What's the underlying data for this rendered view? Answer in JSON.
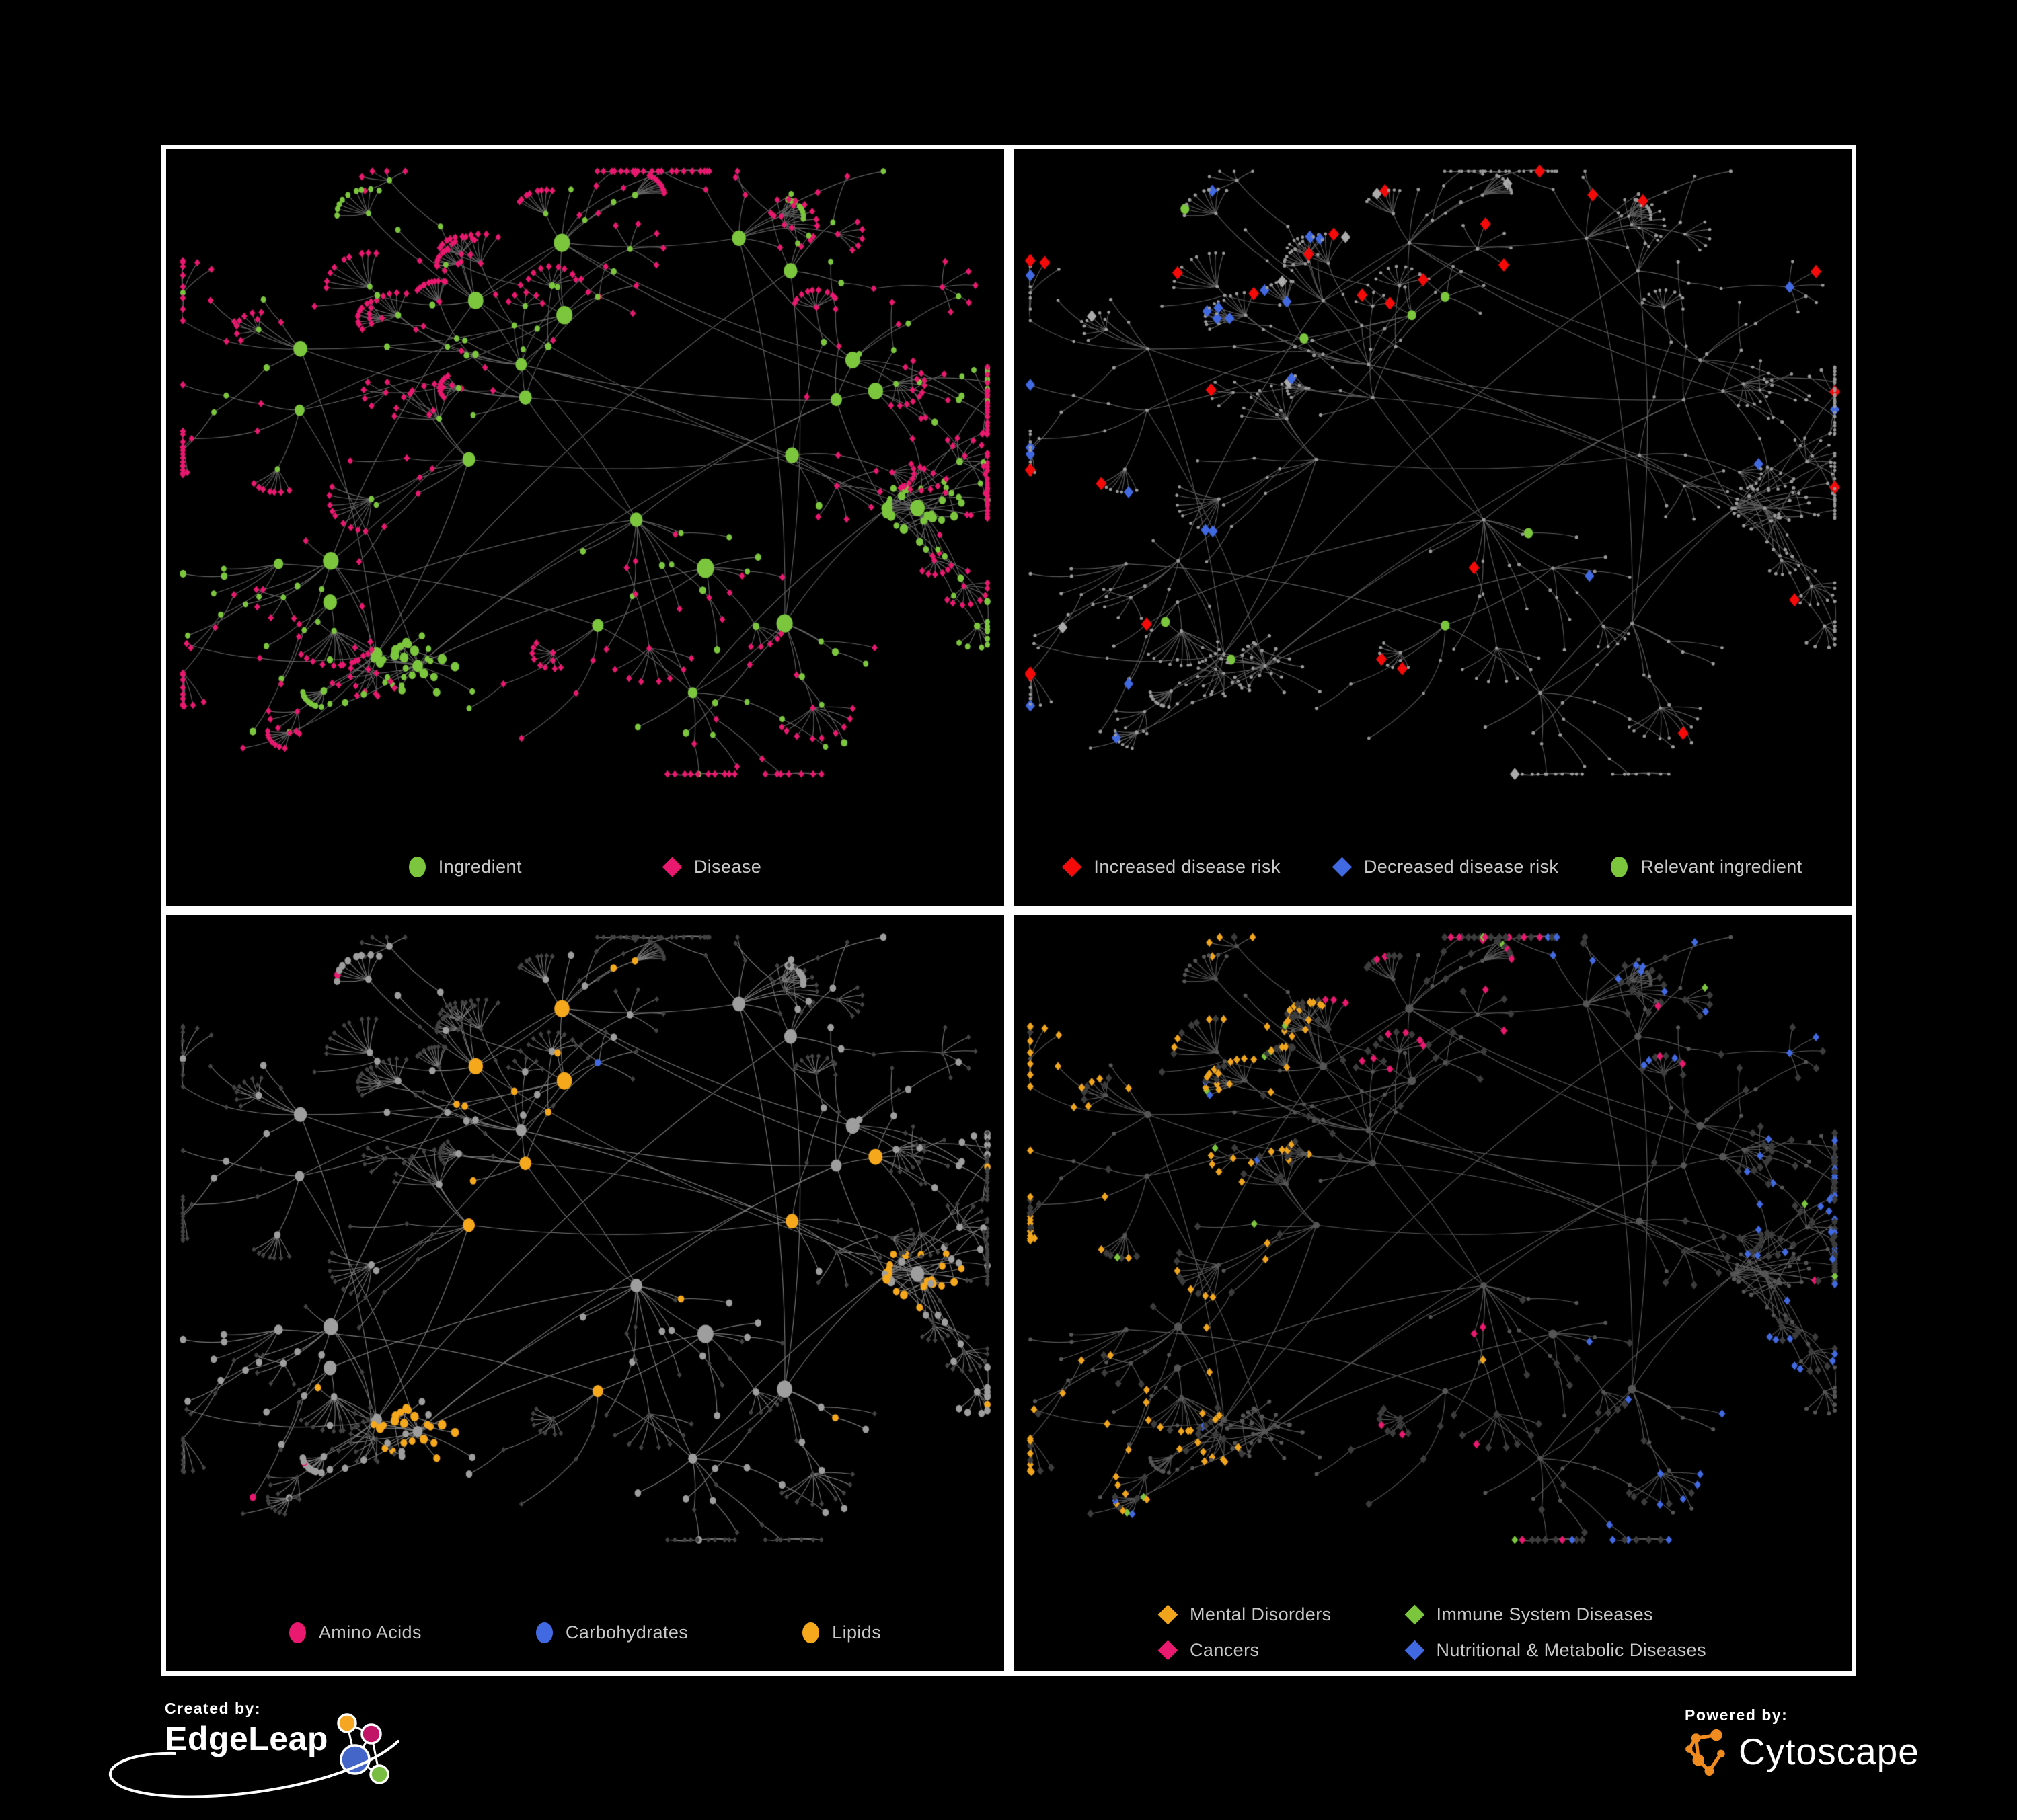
{
  "panels": [
    {
      "name": "ingredient-disease-network",
      "legend": [
        {
          "shape": "ellipse",
          "color": "#7CC63E",
          "label": "Ingredient"
        },
        {
          "shape": "diamond",
          "color": "#E8196F",
          "label": "Disease"
        }
      ],
      "style": {
        "mode": "base",
        "edge": "#6f6f6f",
        "ingredient": "#7CC63E",
        "disease": "#E8196F"
      }
    },
    {
      "name": "disease-risk-network",
      "legend": [
        {
          "shape": "diamond",
          "color": "#F50A0A",
          "label": "Increased disease risk"
        },
        {
          "shape": "diamond",
          "color": "#4169E1",
          "label": "Decreased disease risk"
        },
        {
          "shape": "ellipse",
          "color": "#7CC63E",
          "label": "Relevant ingredient"
        }
      ],
      "style": {
        "mode": "risk",
        "edge": "#686868",
        "base": "#9a9a9a",
        "red": "#F50A0A",
        "blue": "#4169E1",
        "silver": "#ABABAB",
        "green": "#7CC63E"
      }
    },
    {
      "name": "nutrient-network",
      "legend": [
        {
          "shape": "ellipse",
          "color": "#E8196F",
          "label": "Amino Acids"
        },
        {
          "shape": "ellipse",
          "color": "#4169E1",
          "label": "Carbohydrates"
        },
        {
          "shape": "ellipse",
          "color": "#F5A81C",
          "label": "Lipids"
        }
      ],
      "style": {
        "mode": "nutrient",
        "edge": "#8a8a8a",
        "circle": "#9E9E9E",
        "diamond": "#434343",
        "pink": "#E8196F",
        "blue": "#4169E1",
        "orange": "#F5A81C"
      }
    },
    {
      "name": "disease-category-network",
      "legend": [
        {
          "shape": "diamond",
          "color": "#F0A51D",
          "label": "Mental Disorders"
        },
        {
          "shape": "diamond",
          "color": "#7CC63E",
          "label": "Immune System Diseases"
        },
        {
          "shape": "diamond",
          "color": "#E8196F",
          "label": "Cancers"
        },
        {
          "shape": "diamond",
          "color": "#4169E1",
          "label": "Nutritional & Metabolic Diseases"
        }
      ],
      "style": {
        "mode": "category",
        "edge": "#676767",
        "circle": "#555555",
        "diamond": "#3C3C3C",
        "orange": "#F0A51D",
        "green": "#7CC63E",
        "pink": "#E8196F",
        "blue": "#4169E1"
      }
    }
  ],
  "footer": {
    "created_by": "Created by:",
    "brand": "EdgeLeap",
    "powered_by": "Powered by:",
    "engine": "Cytoscape"
  },
  "brand_colors": {
    "edgeleap_orange": "#F5A623",
    "edgeleap_magenta": "#C21467",
    "edgeleap_blue": "#4366C8",
    "edgeleap_green": "#79BE43",
    "cytoscape_orange": "#EF8B1F",
    "panel_border": "#FFFFFF",
    "legend_text": "#C9C9C9",
    "background": "#000000"
  },
  "network": {
    "seed": 8,
    "hubs": 26,
    "clumps": 2,
    "branch_min": 3,
    "branch_max": 8,
    "fan_prob": 0.52,
    "fan_min": 4,
    "fan_max": 11,
    "xmin": 0.02,
    "xmax": 0.98,
    "ymin": 0.02,
    "ymax": 0.85
  }
}
